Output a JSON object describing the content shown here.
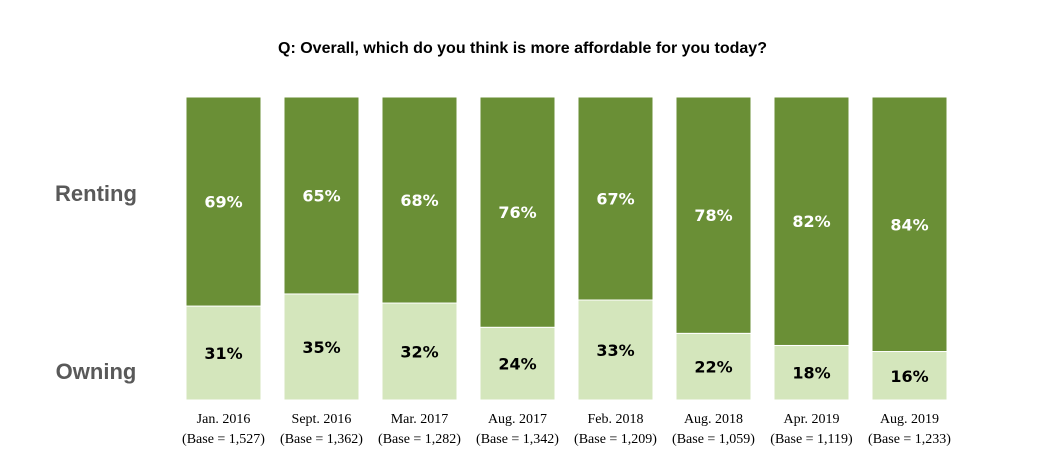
{
  "chart_data": {
    "type": "bar",
    "stacked": true,
    "normalized_percent": true,
    "title": "Q: Overall, which do you think is more affordable for you today?",
    "categories": [
      "Jan. 2016",
      "Sept. 2016",
      "Mar. 2017",
      "Aug. 2017",
      "Feb. 2018",
      "Aug. 2018",
      "Apr. 2019",
      "Aug. 2019"
    ],
    "category_bases": [
      "(Base = 1,527)",
      "(Base = 1,362)",
      "(Base = 1,282)",
      "(Base = 1,342)",
      "(Base = 1,209)",
      "(Base = 1,059)",
      "(Base = 1,119)",
      "(Base = 1,233)"
    ],
    "series": [
      {
        "name": "Owning",
        "values": [
          31,
          35,
          32,
          24,
          33,
          22,
          18,
          16
        ],
        "labels": [
          "31%",
          "35%",
          "32%",
          "24%",
          "33%",
          "22%",
          "18%",
          "16%"
        ],
        "color": "#d4e6bc",
        "label_color": "#000000"
      },
      {
        "name": "Renting",
        "values": [
          69,
          65,
          68,
          76,
          67,
          78,
          82,
          84
        ],
        "labels": [
          "69%",
          "65%",
          "68%",
          "76%",
          "67%",
          "78%",
          "82%",
          "84%"
        ],
        "color": "#6a8f36",
        "label_color": "#ffffff"
      }
    ],
    "ylim": [
      0,
      100
    ],
    "grid": false,
    "legend": "left"
  }
}
